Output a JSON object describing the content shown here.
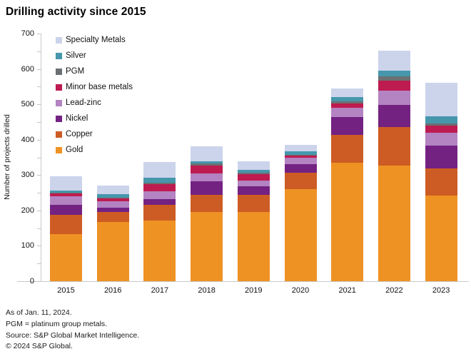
{
  "chart_data": {
    "type": "bar",
    "stacked": true,
    "title": "Drilling activity since 2015",
    "ylabel": "Number of projects drilled",
    "xlabel": "",
    "ylim": [
      0,
      700
    ],
    "yticks": [
      0,
      100,
      200,
      300,
      400,
      500,
      600,
      700
    ],
    "ytick_minor_interval": 50,
    "grid": false,
    "legend_position": "inside-top-left",
    "categories": [
      "2015",
      "2016",
      "2017",
      "2018",
      "2019",
      "2020",
      "2021",
      "2022",
      "2023"
    ],
    "series": [
      {
        "name": "Gold",
        "color": "#EE9224",
        "values": [
          133,
          168,
          171,
          195,
          195,
          260,
          334,
          327,
          242
        ]
      },
      {
        "name": "Copper",
        "color": "#CD5C24",
        "values": [
          54,
          28,
          44,
          50,
          50,
          47,
          79,
          108,
          77
        ]
      },
      {
        "name": "Nickel",
        "color": "#732282",
        "values": [
          29,
          12,
          17,
          38,
          24,
          24,
          50,
          63,
          64
        ]
      },
      {
        "name": "Lead-zinc",
        "color": "#B383C2",
        "values": [
          24,
          18,
          23,
          22,
          15,
          17,
          27,
          41,
          36
        ]
      },
      {
        "name": "Minor base metals",
        "color": "#BE1B50",
        "values": [
          9,
          9,
          20,
          22,
          19,
          8,
          12,
          27,
          20
        ]
      },
      {
        "name": "PGM",
        "color": "#6C6F72",
        "values": [
          2,
          2,
          3,
          5,
          3,
          2,
          6,
          13,
          7
        ]
      },
      {
        "name": "Silver",
        "color": "#4697AC",
        "values": [
          5,
          9,
          14,
          7,
          8,
          9,
          13,
          17,
          19
        ]
      },
      {
        "name": "Specialty Metals",
        "color": "#CCD4EC",
        "values": [
          40,
          24,
          45,
          42,
          24,
          19,
          23,
          56,
          95
        ]
      }
    ],
    "legend_items": [
      "Specialty Metals",
      "Silver",
      "PGM",
      "Minor base metals",
      "Lead-zinc",
      "Nickel",
      "Copper",
      "Gold"
    ]
  },
  "footnotes": [
    "As of Jan. 11, 2024.",
    "PGM = platinum group metals.",
    "Source: S&P Global Market Intelligence.",
    "© 2024 S&P Global."
  ]
}
